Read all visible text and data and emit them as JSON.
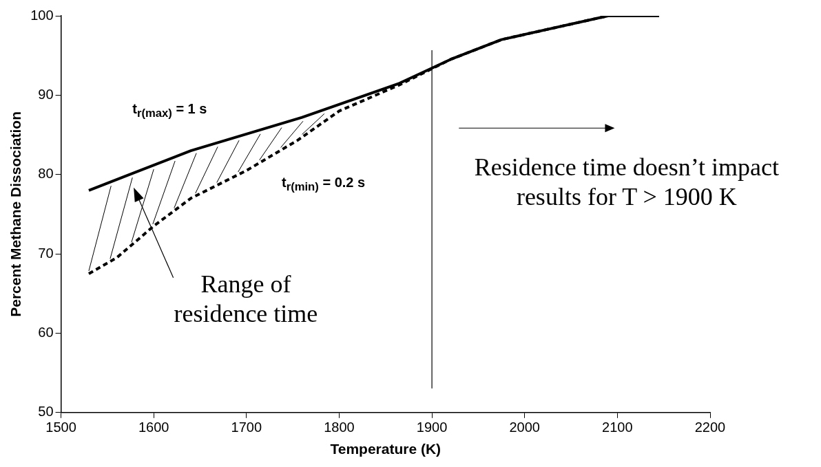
{
  "chart_data": {
    "type": "line",
    "xlabel": "Temperature (K)",
    "ylabel": "Percent Methane Dissociation",
    "xlim": [
      1500,
      2200
    ],
    "xticks": [
      1500,
      1600,
      1700,
      1800,
      1900,
      2000,
      2100,
      2200
    ],
    "ylim": [
      50,
      100
    ],
    "yticks": [
      50,
      60,
      70,
      80,
      90,
      100
    ],
    "grid": false,
    "legend": false,
    "marker": "none",
    "series": [
      {
        "color": "#000000",
        "line_style": "solid",
        "x": [
          1530,
          1640,
          1760,
          1865,
          1920,
          1975,
          2090,
          2145
        ],
        "values": [
          78,
          83,
          87.2,
          91.5,
          94.5,
          97,
          100,
          100
        ]
      },
      {
        "color": "#000000",
        "line_style": "dashed",
        "x": [
          1530,
          1560,
          1600,
          1640,
          1700,
          1755,
          1800,
          1865,
          1920,
          1975,
          2090,
          2145
        ],
        "values": [
          67.5,
          69.5,
          73.5,
          77,
          80.5,
          84.3,
          88,
          91.3,
          94.5,
          97,
          100,
          100
        ]
      }
    ],
    "ref_lines": [
      {
        "axis": "x",
        "value": 1900,
        "color": "#000000",
        "line_style": "solid"
      }
    ],
    "annotations": [
      "t$_{r(max)}$ = 1 s",
      "t$_{r(min)}$ = 0.2 s",
      "Range of residence time",
      "Residence time doesn’t impact results for T > 1900 K"
    ]
  }
}
